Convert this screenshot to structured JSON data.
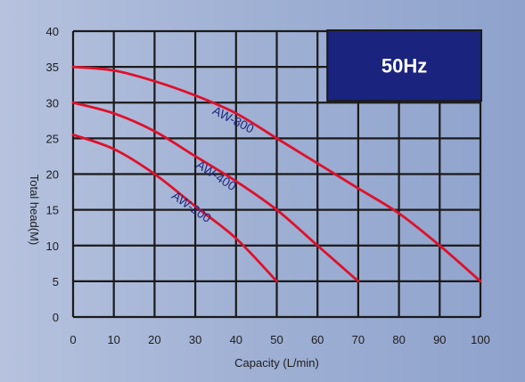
{
  "chart_data": {
    "type": "line",
    "xlabel": "Capacity (L/min)",
    "ylabel": "Total head(M)",
    "xlim": [
      0,
      100
    ],
    "ylim": [
      0,
      40
    ],
    "x_ticks": [
      0,
      10,
      20,
      30,
      40,
      50,
      60,
      70,
      80,
      90,
      100
    ],
    "y_ticks": [
      0,
      5,
      10,
      15,
      20,
      25,
      30,
      35,
      40
    ],
    "grid": true,
    "badge": "50Hz",
    "colors": {
      "grid": "#1a1a1a",
      "curve": "#e0102a",
      "badge": "#1a237e",
      "label": "#22287a"
    },
    "series": [
      {
        "name": "AW-800",
        "x": [
          0,
          10,
          20,
          30,
          40,
          50,
          60,
          70,
          80,
          90,
          100
        ],
        "y": [
          35,
          34.5,
          33,
          31,
          28.5,
          25,
          21.5,
          18,
          14.5,
          10,
          5
        ]
      },
      {
        "name": "AW-400",
        "x": [
          0,
          10,
          20,
          30,
          40,
          50,
          60,
          70
        ],
        "y": [
          30,
          28.5,
          26,
          22.5,
          19,
          15,
          10,
          5
        ]
      },
      {
        "name": "AW-200",
        "x": [
          0,
          10,
          20,
          30,
          40,
          50
        ],
        "y": [
          25.5,
          23.5,
          20,
          15.5,
          11,
          5
        ]
      }
    ]
  }
}
